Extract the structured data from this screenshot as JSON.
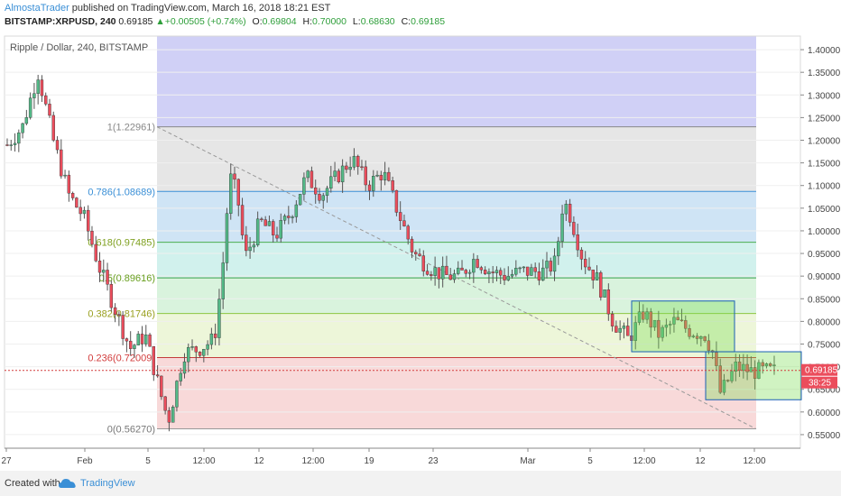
{
  "header": {
    "author": "AlmostaTrader",
    "published": "published on TradingView.com, March 16, 2018 18:21 EST",
    "symbol": "BITSTAMP:XRPUSD, 240",
    "last": "0.69185",
    "change_arrow": "▲",
    "change": "+0.00505 (+0.74%)",
    "open_label": "O:",
    "open": "0.69804",
    "high_label": "H:",
    "high": "0.70000",
    "low_label": "L:",
    "low": "0.68630",
    "close_label": "C:",
    "close": "0.69185"
  },
  "footer": {
    "created_with": "Created with",
    "brand": "TradingView"
  },
  "chart_data": {
    "type": "candlestick",
    "legend": "Ripple / Dollar, 240, BITSTAMP",
    "ylim": [
      0.52,
      1.43
    ],
    "y_ticks": [
      0.55,
      0.6,
      0.65,
      0.7,
      0.75,
      0.8,
      0.85,
      0.9,
      0.95,
      1.0,
      1.05,
      1.1,
      1.15,
      1.2,
      1.25,
      1.3,
      1.35,
      1.4
    ],
    "y_tick_labels": [
      "0.55000",
      "0.60000",
      "0.65000",
      "0.70000",
      "0.75000",
      "0.80000",
      "0.85000",
      "0.90000",
      "0.95000",
      "1.00000",
      "1.05000",
      "1.10000",
      "1.15000",
      "1.20000",
      "1.25000",
      "1.30000",
      "1.35000",
      "1.40000"
    ],
    "x_tick_labels": [
      "27",
      "Feb",
      "5",
      "12:00",
      "12",
      "12:00",
      "19",
      "23",
      "Mar",
      "5",
      "12:00",
      "12",
      "12:00"
    ],
    "current_price_label": "0.69185",
    "countdown_label": "38:25",
    "colors": {
      "up": "#53b987",
      "down": "#eb4d5c",
      "fib_line": "#888888"
    },
    "fibonacci": [
      {
        "label": "1(1.22961)",
        "price": 1.22961
      },
      {
        "label": "0.786(1.08689)",
        "price": 1.08689
      },
      {
        "label": "0.618(0.97485)",
        "price": 0.97485
      },
      {
        "label": "0.5(0.89616)",
        "price": 0.89616
      },
      {
        "label": "0.382(0.81746)",
        "price": 0.81746
      },
      {
        "label": "0.236(0.72009)",
        "price": 0.72009
      },
      {
        "label": "0(0.56270)",
        "price": 0.5627
      }
    ],
    "price_path": [
      [
        0,
        1.19
      ],
      [
        0.02,
        1.23
      ],
      [
        0.04,
        1.35
      ],
      [
        0.06,
        1.2
      ],
      [
        0.08,
        1.08
      ],
      [
        0.1,
        1.03
      ],
      [
        0.12,
        0.92
      ],
      [
        0.14,
        0.83
      ],
      [
        0.16,
        0.74
      ],
      [
        0.18,
        0.77
      ],
      [
        0.2,
        0.64
      ],
      [
        0.21,
        0.58
      ],
      [
        0.23,
        0.73
      ],
      [
        0.25,
        0.74
      ],
      [
        0.27,
        0.76
      ],
      [
        0.28,
        0.9
      ],
      [
        0.29,
        1.12
      ],
      [
        0.3,
        1.08
      ],
      [
        0.31,
        0.94
      ],
      [
        0.33,
        1.02
      ],
      [
        0.35,
        0.99
      ],
      [
        0.37,
        1.04
      ],
      [
        0.39,
        1.12
      ],
      [
        0.41,
        1.08
      ],
      [
        0.43,
        1.12
      ],
      [
        0.45,
        1.16
      ],
      [
        0.47,
        1.1
      ],
      [
        0.49,
        1.13
      ],
      [
        0.51,
        1.04
      ],
      [
        0.53,
        0.95
      ],
      [
        0.55,
        0.92
      ],
      [
        0.57,
        0.9
      ],
      [
        0.59,
        0.9
      ],
      [
        0.61,
        0.94
      ],
      [
        0.63,
        0.91
      ],
      [
        0.65,
        0.9
      ],
      [
        0.67,
        0.91
      ],
      [
        0.7,
        0.91
      ],
      [
        0.715,
        0.93
      ],
      [
        0.725,
        1.07
      ],
      [
        0.735,
        1.03
      ],
      [
        0.75,
        0.94
      ],
      [
        0.77,
        0.89
      ],
      [
        0.79,
        0.8
      ],
      [
        0.81,
        0.76
      ],
      [
        0.83,
        0.82
      ],
      [
        0.85,
        0.77
      ],
      [
        0.87,
        0.8
      ],
      [
        0.89,
        0.78
      ],
      [
        0.91,
        0.77
      ],
      [
        0.92,
        0.73
      ],
      [
        0.93,
        0.64
      ],
      [
        0.95,
        0.7
      ],
      [
        0.97,
        0.69
      ]
    ]
  }
}
